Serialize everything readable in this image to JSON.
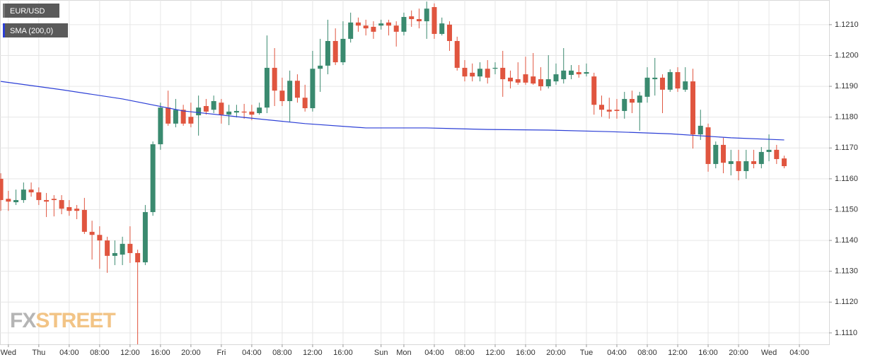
{
  "chart_data": {
    "type": "candlestick",
    "watermark": [
      "FX",
      "STREET"
    ],
    "xlim": [
      -0.1,
      108.9
    ],
    "ylim": [
      1.11063,
      1.1218
    ],
    "grid": true,
    "xticks": [
      {
        "value": 1,
        "label": "Wed"
      },
      {
        "value": 5,
        "label": "Thu"
      },
      {
        "value": 9,
        "label": "04:00"
      },
      {
        "value": 13,
        "label": "08:00"
      },
      {
        "value": 17,
        "label": "12:00"
      },
      {
        "value": 21,
        "label": "16:00"
      },
      {
        "value": 25,
        "label": "20:00"
      },
      {
        "value": 29,
        "label": "Fri"
      },
      {
        "value": 33,
        "label": "04:00"
      },
      {
        "value": 37,
        "label": "08:00"
      },
      {
        "value": 41,
        "label": "12:00"
      },
      {
        "value": 45,
        "label": "16:00"
      },
      {
        "value": 50,
        "label": "Sun"
      },
      {
        "value": 53,
        "label": "Mon"
      },
      {
        "value": 57,
        "label": "04:00"
      },
      {
        "value": 61,
        "label": "08:00"
      },
      {
        "value": 65,
        "label": "12:00"
      },
      {
        "value": 69,
        "label": "16:00"
      },
      {
        "value": 73,
        "label": "20:00"
      },
      {
        "value": 77,
        "label": "Tue"
      },
      {
        "value": 81,
        "label": "04:00"
      },
      {
        "value": 85,
        "label": "08:00"
      },
      {
        "value": 89,
        "label": "12:00"
      },
      {
        "value": 93,
        "label": "16:00"
      },
      {
        "value": 97,
        "label": "20:00"
      },
      {
        "value": 101,
        "label": "Wed"
      },
      {
        "value": 105,
        "label": "04:00"
      }
    ],
    "yticks": [
      {
        "value": 1.111,
        "label": "1.1110"
      },
      {
        "value": 1.112,
        "label": "1.1120"
      },
      {
        "value": 1.113,
        "label": "1.1130"
      },
      {
        "value": 1.114,
        "label": "1.1140"
      },
      {
        "value": 1.115,
        "label": "1.1150"
      },
      {
        "value": 1.116,
        "label": "1.1160"
      },
      {
        "value": 1.117,
        "label": "1.1170"
      },
      {
        "value": 1.118,
        "label": "1.1180"
      },
      {
        "value": 1.119,
        "label": "1.1190"
      },
      {
        "value": 1.12,
        "label": "1.1200"
      },
      {
        "value": 1.121,
        "label": "1.1210"
      }
    ],
    "series": [
      {
        "name": "EUR/USD",
        "type": "candlestick",
        "legend_color": "#777777",
        "up_color": "#3a8a6f",
        "down_color": "#e0553f",
        "open": [
          1.116,
          1.11535,
          1.11524,
          1.11531,
          1.11565,
          1.11556,
          1.11531,
          1.11535,
          1.11531,
          1.11508,
          1.11503,
          1.11499,
          1.11428,
          1.11418,
          1.114,
          1.1135,
          1.11354,
          1.11389,
          1.11359,
          1.11329,
          1.11492,
          1.11712,
          1.11831,
          1.11779,
          1.11824,
          1.11801,
          1.11806,
          1.11836,
          1.11824,
          1.11847,
          1.11808,
          1.11815,
          1.11818,
          1.11818,
          1.11813,
          1.11831,
          1.1196,
          1.11886,
          1.11852,
          1.11918,
          1.11863,
          1.11829,
          1.11957,
          1.11967,
          1.12047,
          1.11978,
          1.12054,
          1.12107,
          1.12097,
          1.12093,
          1.12097,
          1.12107,
          1.12097,
          1.12077,
          1.12127,
          1.12118,
          1.12111,
          1.12157,
          1.1207,
          1.121,
          1.12047,
          1.1196,
          1.11944,
          1.11932,
          1.11957,
          1.11957,
          1.1196,
          1.11928,
          1.11923,
          1.11939,
          1.11932,
          1.11923,
          1.119,
          1.11916,
          1.11923,
          1.11937,
          1.11946,
          1.11941,
          1.11932,
          1.1184,
          1.11824,
          1.11824,
          1.1182,
          1.11859,
          1.11847,
          1.11866,
          1.11923,
          1.11928,
          1.11889,
          1.11946,
          1.11889,
          1.11916,
          1.11744,
          1.11767,
          1.11648,
          1.1171,
          1.11648,
          1.11657,
          1.11625,
          1.11657,
          1.11648,
          1.11687,
          1.11694,
          1.11666
        ],
        "high": [
          1.11618,
          1.11561,
          1.11565,
          1.11588,
          1.11588,
          1.11572,
          1.11554,
          1.11547,
          1.11547,
          1.11531,
          1.11515,
          1.11538,
          1.11464,
          1.11446,
          1.11412,
          1.114,
          1.11412,
          1.11446,
          1.1137,
          1.11515,
          1.11721,
          1.11847,
          1.11886,
          1.11859,
          1.1184,
          1.11847,
          1.1187,
          1.11859,
          1.1187,
          1.11859,
          1.1184,
          1.1184,
          1.11843,
          1.1184,
          1.11847,
          1.12065,
          1.12024,
          1.11928,
          1.11951,
          1.11939,
          1.11905,
          1.12015,
          1.12054,
          1.12116,
          1.12088,
          1.12111,
          1.12139,
          1.12123,
          1.12116,
          1.12111,
          1.12116,
          1.12116,
          1.12111,
          1.12139,
          1.12146,
          1.12152,
          1.12175,
          1.12169,
          1.12123,
          1.12111,
          1.12061,
          1.11985,
          1.11974,
          1.11978,
          1.11985,
          1.11978,
          1.12015,
          1.11951,
          1.11978,
          1.11996,
          1.12008,
          1.11962,
          1.12001,
          1.11974,
          1.12024,
          1.11969,
          1.11969,
          1.11974,
          1.11944,
          1.1187,
          1.11863,
          1.11859,
          1.11882,
          1.11886,
          1.11882,
          1.11962,
          1.11992,
          1.11939,
          1.11955,
          1.11962,
          1.11962,
          1.11957,
          1.11824,
          1.11779,
          1.11721,
          1.11733,
          1.11694,
          1.11694,
          1.11694,
          1.11694,
          1.11703,
          1.11744,
          1.1171,
          1.11675
        ],
        "low": [
          1.11496,
          1.11496,
          1.11515,
          1.11522,
          1.11542,
          1.11515,
          1.11476,
          1.11478,
          1.11485,
          1.1148,
          1.11469,
          1.11421,
          1.11338,
          1.11308,
          1.11295,
          1.1132,
          1.1132,
          1.11327,
          1.11063,
          1.1132,
          1.1148,
          1.11694,
          1.11772,
          1.11767,
          1.11772,
          1.11767,
          1.1174,
          1.11808,
          1.11813,
          1.11779,
          1.11774,
          1.11799,
          1.11795,
          1.1179,
          1.11808,
          1.11813,
          1.11836,
          1.11836,
          1.11785,
          1.11847,
          1.11818,
          1.11818,
          1.11882,
          1.11939,
          1.11969,
          1.11969,
          1.12042,
          1.12077,
          1.12065,
          1.12054,
          1.12084,
          1.12065,
          1.12029,
          1.12065,
          1.12093,
          1.12088,
          1.12054,
          1.12054,
          1.12065,
          1.12015,
          1.11951,
          1.11916,
          1.11916,
          1.11916,
          1.11909,
          1.11939,
          1.11866,
          1.11893,
          1.11905,
          1.11905,
          1.11905,
          1.11886,
          1.11893,
          1.11905,
          1.11909,
          1.11923,
          1.11928,
          1.11932,
          1.11808,
          1.11801,
          1.11795,
          1.11795,
          1.11795,
          1.11813,
          1.11756,
          1.11847,
          1.1187,
          1.11813,
          1.11882,
          1.11882,
          1.11882,
          1.11698,
          1.11726,
          1.11623,
          1.11634,
          1.11618,
          1.11611,
          1.11595,
          1.116,
          1.11634,
          1.11634,
          1.11657,
          1.11648,
          1.11634
        ],
        "close": [
          1.11531,
          1.11526,
          1.11531,
          1.11565,
          1.11556,
          1.11531,
          1.11526,
          1.11531,
          1.11503,
          1.11496,
          1.11496,
          1.11428,
          1.11418,
          1.114,
          1.1135,
          1.11359,
          1.11389,
          1.11359,
          1.11329,
          1.11492,
          1.11712,
          1.11831,
          1.11779,
          1.11824,
          1.11779,
          1.11779,
          1.11831,
          1.11818,
          1.11852,
          1.11808,
          1.11818,
          1.1182,
          1.11815,
          1.11808,
          1.11831,
          1.1196,
          1.11886,
          1.11852,
          1.11918,
          1.11863,
          1.11829,
          1.11957,
          1.11967,
          1.12047,
          1.11978,
          1.12054,
          1.12107,
          1.12097,
          1.12088,
          1.12077,
          1.12104,
          1.12097,
          1.12077,
          1.12125,
          1.12118,
          1.12111,
          1.12152,
          1.1207,
          1.12104,
          1.12047,
          1.1196,
          1.11932,
          1.11932,
          1.11957,
          1.11928,
          1.1196,
          1.11923,
          1.11916,
          1.11912,
          1.11912,
          1.11909,
          1.119,
          1.11923,
          1.11939,
          1.11951,
          1.11951,
          1.11939,
          1.11946,
          1.1184,
          1.11824,
          1.11818,
          1.1182,
          1.11859,
          1.11847,
          1.1187,
          1.11928,
          1.11928,
          1.11889,
          1.11946,
          1.11893,
          1.11916,
          1.11744,
          1.11772,
          1.11648,
          1.1171,
          1.11652,
          1.11657,
          1.11625,
          1.11657,
          1.11648,
          1.11687,
          1.11694,
          1.11664,
          1.11641
        ]
      },
      {
        "name": "SMA (200,0)",
        "type": "line",
        "color": "#2c3fd6",
        "x": [
          0,
          8,
          16,
          24,
          32,
          40,
          48,
          56,
          64,
          72,
          80,
          88,
          96,
          103
        ],
        "values": [
          1.11916,
          1.11889,
          1.11859,
          1.1182,
          1.11799,
          1.11779,
          1.11765,
          1.11765,
          1.1176,
          1.11758,
          1.11753,
          1.11746,
          1.11733,
          1.11726
        ]
      }
    ]
  }
}
